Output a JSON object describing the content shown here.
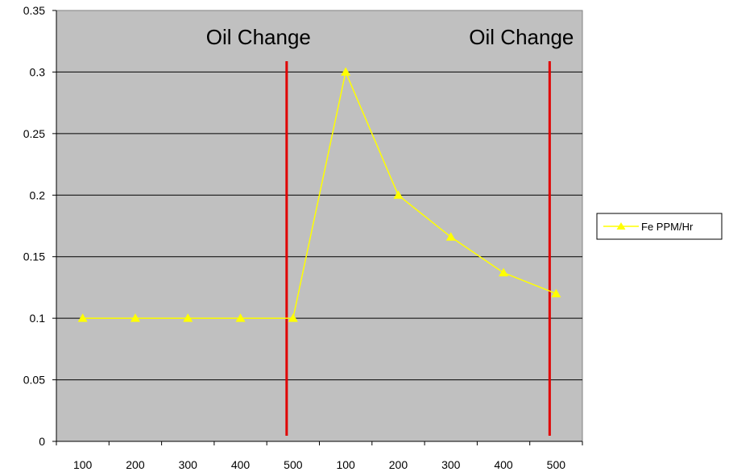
{
  "chart_data": {
    "type": "line",
    "categories": [
      "100",
      "200",
      "300",
      "400",
      "500",
      "100",
      "200",
      "300",
      "400",
      "500"
    ],
    "series": [
      {
        "name": "Fe PPM/Hr",
        "values": [
          0.1,
          0.1,
          0.1,
          0.1,
          0.1,
          0.3,
          0.2,
          0.166,
          0.137,
          0.12
        ],
        "color": "#ffff00",
        "marker": "triangle"
      }
    ],
    "ylim": [
      0,
      0.35
    ],
    "yticks": [
      "0",
      "0.05",
      "0.1",
      "0.15",
      "0.2",
      "0.25",
      "0.3",
      "0.35"
    ],
    "grid": "horizontal",
    "plot_background": "#c0c0c0",
    "legend": "right",
    "annotations": [
      {
        "text": "Oil Change",
        "after_index": 4,
        "line_color": "#e00000"
      },
      {
        "text": "Oil Change",
        "after_index": 9,
        "line_color": "#e00000"
      }
    ]
  }
}
